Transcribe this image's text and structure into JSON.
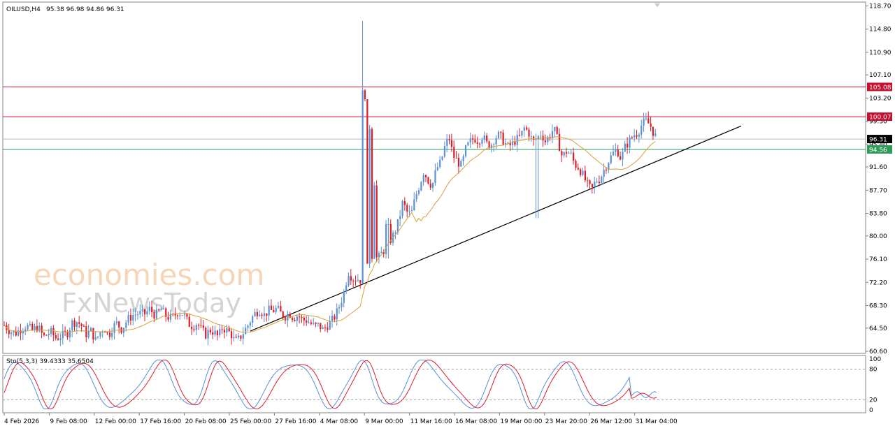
{
  "header": {
    "symbol": "OILUSD,H4",
    "ohlc": "95.38 96.98 94.86 96.31"
  },
  "watermark": {
    "line1": "economies.com",
    "line2": "FxNewsToday"
  },
  "colors": {
    "up_candle": "#5b8fd6",
    "down_candle": "#dd1c2a",
    "ma_line": "#d9a036",
    "resistance_line": "#c8102e",
    "support_line": "#2e9b58",
    "current_price_line": "#b9b9b9",
    "trendline": "#000000",
    "stoch_main": "#5b8fd6",
    "stoch_signal": "#dd1c2a",
    "label_current_bg": "#000000",
    "label_support_bg": "#2e9b58",
    "label_resistance_bg": "#c8102e"
  },
  "chart_data": [
    {
      "type": "candlestick",
      "title": "OILUSD,H4",
      "y_ticks": [
        "60.60",
        "64.50",
        "68.30",
        "72.20",
        "76.10",
        "80.00",
        "83.80",
        "87.70",
        "91.60",
        "95.40",
        "99.30",
        "103.20",
        "107.10",
        "110.90",
        "114.80",
        "118.70"
      ],
      "x_ticks": [
        "4 Feb 2026",
        "9 Feb 08:00",
        "12 Feb 00:00",
        "17 Feb 16:00",
        "20 Feb 08:00",
        "25 Feb 00:00",
        "27 Feb 16:00",
        "4 Mar 08:00",
        "9 Mar 00:00",
        "11 Mar 16:00",
        "16 Mar 08:00",
        "19 Mar 00:00",
        "23 Mar 20:00",
        "26 Mar 12:00",
        "31 Mar 04:00"
      ],
      "ylim": [
        60.6,
        118.7
      ],
      "price_levels": {
        "resistance_1": "105.08",
        "resistance_2": "100.07",
        "current": "96.31",
        "support": "94.56"
      },
      "trendline": {
        "start": [
          "25 Feb 00:00",
          64.0
        ],
        "end": [
          "1 Apr 12:00",
          98.5
        ]
      },
      "close_path": [
        [
          0,
          65.0
        ],
        [
          8,
          64.0
        ],
        [
          16,
          63.6
        ],
        [
          24,
          64.4
        ],
        [
          32,
          64.9
        ],
        [
          40,
          64.1
        ],
        [
          48,
          64.8
        ],
        [
          56,
          63.0
        ],
        [
          66,
          63.9
        ],
        [
          74,
          62.8
        ],
        [
          82,
          63.2
        ],
        [
          90,
          63.6
        ],
        [
          97,
          65.4
        ],
        [
          104,
          65.6
        ],
        [
          110,
          65.0
        ],
        [
          117,
          63.5
        ],
        [
          124,
          64.0
        ],
        [
          131,
          62.4
        ],
        [
          137,
          63.8
        ],
        [
          143,
          64.6
        ],
        [
          149,
          63.2
        ],
        [
          155,
          64.7
        ],
        [
          161,
          65.3
        ],
        [
          168,
          64.3
        ],
        [
          176,
          65.9
        ],
        [
          184,
          66.7
        ],
        [
          192,
          67.0
        ],
        [
          200,
          66.8
        ],
        [
          208,
          67.7
        ],
        [
          216,
          66.6
        ],
        [
          224,
          67.7
        ],
        [
          232,
          66.4
        ],
        [
          240,
          66.2
        ],
        [
          248,
          67.2
        ],
        [
          256,
          66.9
        ],
        [
          264,
          65.2
        ],
        [
          270,
          64.8
        ],
        [
          276,
          65.4
        ],
        [
          282,
          64.2
        ],
        [
          288,
          63.4
        ],
        [
          294,
          64.2
        ],
        [
          300,
          63.8
        ],
        [
          306,
          63.0
        ],
        [
          312,
          64.6
        ],
        [
          318,
          64.1
        ],
        [
          324,
          63.6
        ],
        [
          330,
          62.2
        ],
        [
          336,
          62.7
        ],
        [
          342,
          63.8
        ],
        [
          348,
          64.9
        ],
        [
          354,
          66.2
        ],
        [
          360,
          67.2
        ],
        [
          366,
          67.6
        ],
        [
          372,
          66.7
        ],
        [
          378,
          67.5
        ],
        [
          384,
          67.4
        ],
        [
          390,
          67.8
        ],
        [
          396,
          66.9
        ],
        [
          402,
          66.5
        ],
        [
          408,
          67.0
        ],
        [
          414,
          66.2
        ],
        [
          420,
          66.7
        ],
        [
          426,
          65.9
        ],
        [
          432,
          65.8
        ],
        [
          438,
          65.3
        ],
        [
          444,
          64.8
        ],
        [
          450,
          65.0
        ],
        [
          456,
          64.2
        ],
        [
          462,
          65.0
        ],
        [
          468,
          65.6
        ],
        [
          474,
          66.7
        ],
        [
          480,
          68.4
        ],
        [
          486,
          70.6
        ],
        [
          492,
          74.0
        ],
        [
          498,
          72.9
        ],
        [
          504,
          72.8
        ],
        [
          510,
          72.6
        ],
        [
          516,
          73.4
        ],
        [
          522,
          75.5
        ],
        [
          528,
          77.4
        ],
        [
          534,
          76.0
        ],
        [
          540,
          77.2
        ],
        [
          546,
          78.0
        ],
        [
          552,
          79.2
        ],
        [
          558,
          80.5
        ],
        [
          564,
          82.5
        ],
        [
          570,
          85.7
        ],
        [
          576,
          84.0
        ],
        [
          582,
          83.6
        ],
        [
          588,
          86.6
        ],
        [
          594,
          88.6
        ],
        [
          600,
          90.9
        ],
        [
          606,
          89.4
        ],
        [
          612,
          88.4
        ],
        [
          618,
          91.3
        ],
        [
          624,
          92.3
        ],
        [
          630,
          95.0
        ],
        [
          636,
          96.6
        ],
        [
          642,
          93.5
        ],
        [
          648,
          92.6
        ],
        [
          654,
          91.7
        ],
        [
          660,
          94.6
        ],
        [
          666,
          95.8
        ],
        [
          672,
          96.5
        ],
        [
          678,
          96.0
        ],
        [
          684,
          96.9
        ],
        [
          690,
          95.5
        ],
        [
          696,
          95.3
        ],
        [
          702,
          96.6
        ],
        [
          708,
          97.0
        ],
        [
          714,
          96.0
        ],
        [
          720,
          95.0
        ],
        [
          726,
          95.4
        ],
        [
          732,
          96.2
        ],
        [
          738,
          96.7
        ],
        [
          744,
          98.2
        ],
        [
          750,
          97.4
        ],
        [
          756,
          95.8
        ],
        [
          762,
          96.4
        ],
        [
          768,
          97.3
        ],
        [
          774,
          95.9
        ],
        [
          780,
          96.9
        ],
        [
          786,
          98.1
        ],
        [
          792,
          95.9
        ],
        [
          798,
          93.3
        ],
        [
          804,
          94.2
        ],
        [
          810,
          93.8
        ],
        [
          816,
          92.0
        ],
        [
          822,
          91.5
        ],
        [
          828,
          90.1
        ],
        [
          834,
          88.6
        ],
        [
          840,
          87.7
        ],
        [
          846,
          89.3
        ],
        [
          852,
          89.6
        ],
        [
          858,
          91.2
        ],
        [
          864,
          92.6
        ],
        [
          870,
          93.8
        ],
        [
          876,
          94.6
        ],
        [
          882,
          93.0
        ],
        [
          888,
          95.0
        ],
        [
          894,
          96.0
        ],
        [
          900,
          97.0
        ],
        [
          906,
          97.4
        ],
        [
          912,
          98.8
        ],
        [
          918,
          99.3
        ],
        [
          924,
          98.6
        ],
        [
          930,
          97.0
        ],
        [
          934,
          96.3
        ]
      ]
    },
    {
      "type": "line",
      "title": "Sto(5,3,3) 39.4333 35.6504",
      "y_ticks": [
        "100",
        "80",
        "20",
        "0"
      ],
      "ylim": [
        0,
        100
      ]
    }
  ]
}
